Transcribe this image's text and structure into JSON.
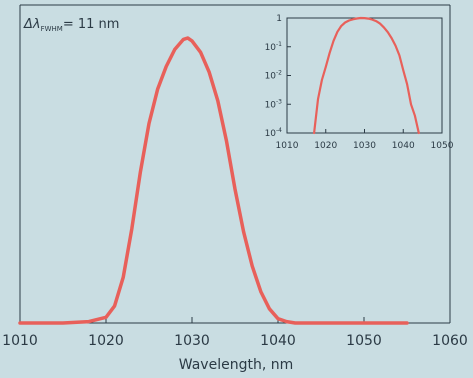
{
  "annotation": {
    "delta_symbol": "Δλ",
    "subscript": "FWHM",
    "value": "= 11 nm"
  },
  "chart_data": [
    {
      "type": "line",
      "role": "main",
      "xlabel": "Wavelength, nm",
      "ylabel": "",
      "xlim": [
        1010,
        1060
      ],
      "ylim": [
        0,
        1.0
      ],
      "xticks": [
        "1010",
        "1020",
        "1030",
        "1040",
        "1050",
        "1060"
      ],
      "grid": false,
      "color": "#e8605a",
      "series": [
        {
          "x": [
            1010,
            1015,
            1018,
            1020,
            1021,
            1022,
            1023,
            1024,
            1025,
            1026,
            1027,
            1028,
            1029,
            1029.5,
            1030,
            1031,
            1032,
            1033,
            1034,
            1035,
            1036,
            1037,
            1038,
            1039,
            1040,
            1041,
            1042,
            1045,
            1050,
            1055
          ],
          "y": [
            0,
            0,
            0.005,
            0.02,
            0.06,
            0.16,
            0.33,
            0.53,
            0.7,
            0.82,
            0.9,
            0.96,
            0.995,
            1.0,
            0.99,
            0.95,
            0.88,
            0.78,
            0.64,
            0.47,
            0.32,
            0.2,
            0.11,
            0.05,
            0.015,
            0.005,
            0.0,
            0,
            0,
            0
          ]
        }
      ]
    },
    {
      "type": "line",
      "role": "inset",
      "yscale": "log",
      "xlim": [
        1010,
        1050
      ],
      "ylim": [
        0.0001,
        1
      ],
      "xticks": [
        "1010",
        "1020",
        "1030",
        "1040",
        "1050"
      ],
      "yticks": [
        {
          "value": 1,
          "base": "1",
          "exp": ""
        },
        {
          "value": 0.1,
          "base": "10",
          "exp": "-1"
        },
        {
          "value": 0.01,
          "base": "10",
          "exp": "-2"
        },
        {
          "value": 0.001,
          "base": "10",
          "exp": "-3"
        },
        {
          "value": 0.0001,
          "base": "10",
          "exp": "-4"
        }
      ],
      "color": "#e8605a",
      "series": [
        {
          "x": [
            1017,
            1018,
            1019,
            1020,
            1021,
            1022,
            1023,
            1024,
            1025,
            1026,
            1027,
            1028,
            1029,
            1030,
            1031,
            1032,
            1033,
            1034,
            1035,
            1036,
            1037,
            1038,
            1039,
            1040,
            1041,
            1042,
            1043,
            1044
          ],
          "y": [
            0.0001,
            0.0015,
            0.007,
            0.02,
            0.06,
            0.16,
            0.33,
            0.53,
            0.7,
            0.82,
            0.9,
            0.96,
            1.0,
            0.99,
            0.95,
            0.88,
            0.78,
            0.64,
            0.47,
            0.32,
            0.2,
            0.11,
            0.05,
            0.015,
            0.005,
            0.001,
            0.0004,
            0.0001
          ]
        }
      ]
    }
  ]
}
